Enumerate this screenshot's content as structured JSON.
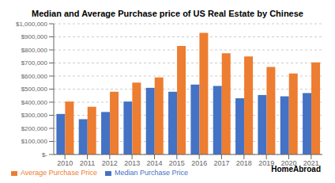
{
  "chart_data": {
    "type": "bar",
    "title": "Median and Average Purchase price of US Real Estate by Chinese",
    "categories": [
      "2010",
      "2011",
      "2012",
      "2013",
      "2014",
      "2015",
      "2016",
      "2017",
      "2018",
      "2019",
      "2020",
      "2021"
    ],
    "series": [
      {
        "name": "Median Purchase Price",
        "color": "#4472C4",
        "values": [
          310000,
          270000,
          325000,
          405000,
          510000,
          480000,
          535000,
          525000,
          430000,
          455000,
          445000,
          470000
        ]
      },
      {
        "name": "Average Purchase Price",
        "color": "#ED7D31",
        "values": [
          405000,
          365000,
          480000,
          550000,
          590000,
          830000,
          930000,
          775000,
          750000,
          670000,
          620000,
          705000
        ]
      }
    ],
    "ylim": [
      0,
      1000000
    ],
    "yticks": [
      {
        "value": 0,
        "label": "$-"
      },
      {
        "value": 100000,
        "label": "$100,000"
      },
      {
        "value": 200000,
        "label": "$200,000"
      },
      {
        "value": 300000,
        "label": "$300,000"
      },
      {
        "value": 400000,
        "label": "$400,000"
      },
      {
        "value": 500000,
        "label": "$500,000"
      },
      {
        "value": 600000,
        "label": "$600,000"
      },
      {
        "value": 700000,
        "label": "$700,000"
      },
      {
        "value": 800000,
        "label": "$800,000"
      },
      {
        "value": 900000,
        "label": "$900,000"
      },
      {
        "value": 1000000,
        "label": "$1,000,000"
      }
    ],
    "grid": true,
    "legend": "lower left",
    "annotations": [
      "HomeAbroad"
    ]
  }
}
